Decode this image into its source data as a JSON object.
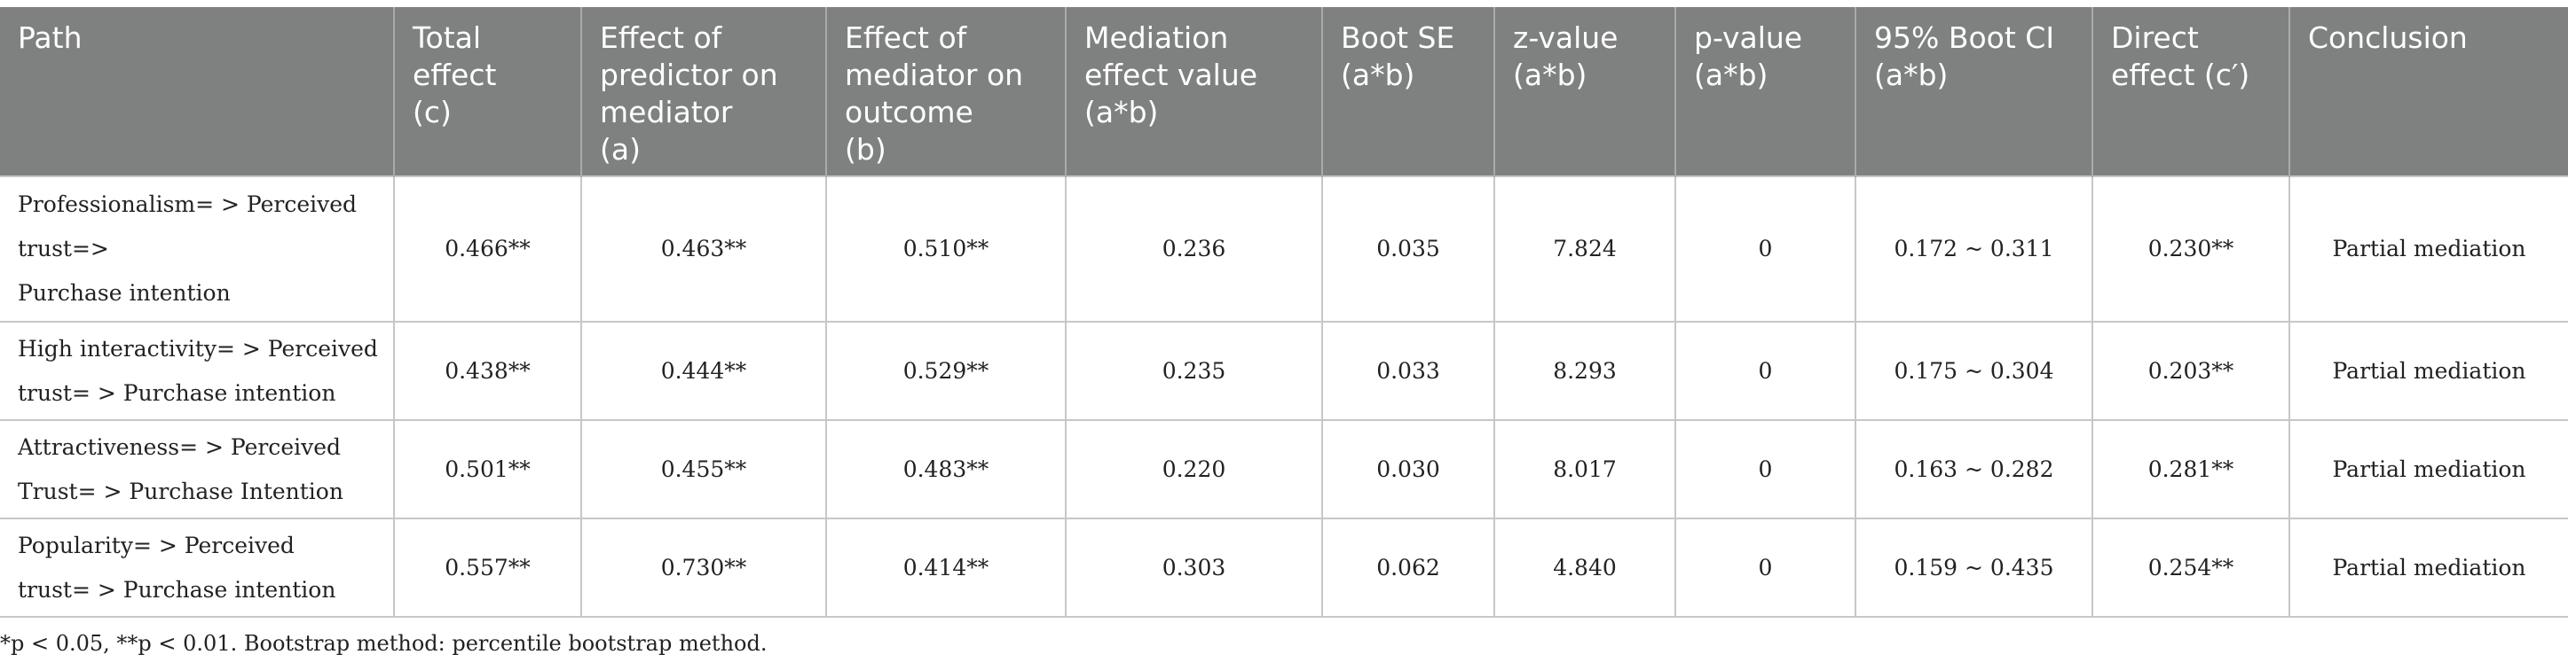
{
  "columns": [
    "Path",
    "Total\neffect\n(c)",
    "Effect of\npredictor on\nmediator\n(a)",
    "Effect of\nmediator on\noutcome\n(b)",
    "Mediation\neffect value\n(a*b)",
    "Boot SE\n(a*b)",
    "z-value\n(a*b)",
    "p-value\n(a*b)",
    "95% Boot CI\n(a*b)",
    "Direct\neffect (c′)",
    "Conclusion"
  ],
  "rows": [
    {
      "path": "Professionalism= > Perceived\ntrust=>\nPurchase intention",
      "total_effect": "0.466**",
      "effect_a": "0.463**",
      "effect_b": "0.510**",
      "mediation": "0.236",
      "boot_se": "0.035",
      "z": "7.824",
      "p": "0",
      "ci": "0.172 ~ 0.311",
      "direct": "0.230**",
      "conclusion": "Partial mediation"
    },
    {
      "path": "High interactivity= > Perceived\ntrust= > Purchase intention",
      "total_effect": "0.438**",
      "effect_a": "0.444**",
      "effect_b": "0.529**",
      "mediation": "0.235",
      "boot_se": "0.033",
      "z": "8.293",
      "p": "0",
      "ci": "0.175 ~ 0.304",
      "direct": "0.203**",
      "conclusion": "Partial mediation"
    },
    {
      "path": "Attractiveness= > Perceived\nTrust= > Purchase Intention",
      "total_effect": "0.501**",
      "effect_a": "0.455**",
      "effect_b": "0.483**",
      "mediation": "0.220",
      "boot_se": "0.030",
      "z": "8.017",
      "p": "0",
      "ci": "0.163 ~ 0.282",
      "direct": "0.281**",
      "conclusion": "Partial mediation"
    },
    {
      "path": "Popularity= > Perceived\ntrust= > Purchase intention",
      "total_effect": "0.557**",
      "effect_a": "0.730**",
      "effect_b": "0.414**",
      "mediation": "0.303",
      "boot_se": "0.062",
      "z": "4.840",
      "p": "0",
      "ci": "0.159 ~ 0.435",
      "direct": "0.254**",
      "conclusion": "Partial mediation"
    }
  ],
  "footnote": "*p < 0.05, **p < 0.01. Bootstrap method: percentile bootstrap method."
}
